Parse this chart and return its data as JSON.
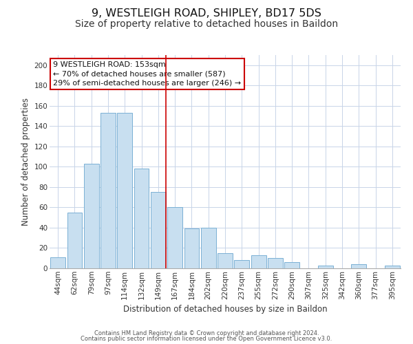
{
  "title": "9, WESTLEIGH ROAD, SHIPLEY, BD17 5DS",
  "subtitle": "Size of property relative to detached houses in Baildon",
  "xlabel": "Distribution of detached houses by size in Baildon",
  "ylabel": "Number of detached properties",
  "categories": [
    "44sqm",
    "62sqm",
    "79sqm",
    "97sqm",
    "114sqm",
    "132sqm",
    "149sqm",
    "167sqm",
    "184sqm",
    "202sqm",
    "220sqm",
    "237sqm",
    "255sqm",
    "272sqm",
    "290sqm",
    "307sqm",
    "325sqm",
    "342sqm",
    "360sqm",
    "377sqm",
    "395sqm"
  ],
  "values": [
    11,
    55,
    103,
    153,
    153,
    98,
    75,
    60,
    39,
    40,
    15,
    8,
    13,
    10,
    6,
    0,
    3,
    0,
    4,
    0,
    3
  ],
  "bar_color": "#c8dff0",
  "bar_edge_color": "#7ab0d4",
  "red_line_index": 6,
  "ylim": [
    0,
    210
  ],
  "yticks": [
    0,
    20,
    40,
    60,
    80,
    100,
    120,
    140,
    160,
    180,
    200
  ],
  "annotation_title": "9 WESTLEIGH ROAD: 153sqm",
  "annotation_line1": "← 70% of detached houses are smaller (587)",
  "annotation_line2": "29% of semi-detached houses are larger (246) →",
  "annotation_box_edge": "#cc0000",
  "footer_line1": "Contains HM Land Registry data © Crown copyright and database right 2024.",
  "footer_line2": "Contains public sector information licensed under the Open Government Licence v3.0.",
  "title_fontsize": 11.5,
  "subtitle_fontsize": 10,
  "axis_label_fontsize": 8.5,
  "tick_fontsize": 7.5,
  "annotation_fontsize": 8,
  "footer_fontsize": 6,
  "background_color": "#ffffff",
  "grid_color": "#c8d4e8"
}
